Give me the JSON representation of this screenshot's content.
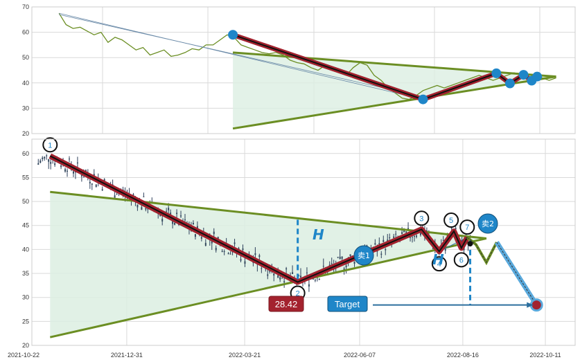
{
  "chart_data": [
    {
      "type": "line",
      "panel": "overview",
      "ylim": [
        20,
        70
      ],
      "yticks": [
        "20",
        "30",
        "40",
        "50",
        "60",
        "70"
      ],
      "grid": true,
      "series": [
        {
          "values": [
            67.5,
            63,
            61.5,
            62,
            60.5,
            59,
            60,
            56,
            58,
            57,
            55,
            53,
            54,
            51,
            52,
            53,
            50.5,
            51,
            52,
            53.5,
            53,
            55,
            55,
            57,
            59,
            58,
            55,
            54,
            53,
            52,
            51.5,
            52,
            51,
            49,
            48,
            47.5,
            46,
            45,
            47,
            46,
            44,
            43,
            46,
            48,
            47,
            43,
            41,
            38,
            36,
            34,
            33.5,
            35,
            37,
            38,
            39,
            38,
            39,
            40,
            41,
            42,
            43,
            42,
            41,
            42,
            43,
            44,
            43,
            42,
            43,
            42,
            41,
            42
          ]
        }
      ],
      "pattern_points": [
        {
          "x": 0.37,
          "y": 59
        },
        {
          "x": 0.72,
          "y": 33.5
        },
        {
          "x": 0.855,
          "y": 43.8
        },
        {
          "x": 0.88,
          "y": 39.8
        },
        {
          "x": 0.905,
          "y": 43.2
        },
        {
          "x": 0.92,
          "y": 40.9
        },
        {
          "x": 0.93,
          "y": 42.5
        }
      ],
      "trend_upper": [
        [
          0.37,
          52
        ],
        [
          0.965,
          42.5
        ]
      ],
      "trend_lower": [
        [
          0.37,
          22
        ],
        [
          0.965,
          42.5
        ]
      ]
    },
    {
      "type": "line",
      "panel": "detail",
      "ylim": [
        20,
        63
      ],
      "yticks": [
        "20",
        "25",
        "30",
        "35",
        "40",
        "45",
        "50",
        "55",
        "60"
      ],
      "xticks": [
        "2021-10-22",
        "2021-12-31",
        "2022-03-21",
        "2022-06-07",
        "2022-08-16",
        "2022-10-11"
      ],
      "grid": true,
      "pattern_points": [
        {
          "label": "1",
          "x": "2021-11-09",
          "y": 59.5
        },
        {
          "label": "2",
          "x": "2022-04-26",
          "y": 33.2
        },
        {
          "label": "3",
          "x": "2022-07-19",
          "y": 44.2
        },
        {
          "label": "4",
          "x": "2022-07-31",
          "y": 39.6
        },
        {
          "label": "5",
          "x": "2022-08-10",
          "y": 43.8
        },
        {
          "label": "6",
          "x": "2022-08-15",
          "y": 40.3
        },
        {
          "label": "7",
          "x": "2022-08-19",
          "y": 42.5
        }
      ],
      "projection": [
        {
          "x": "2022-08-19",
          "y": 42.5
        },
        {
          "x": "2022-08-25",
          "y": 41.0
        },
        {
          "x": "2022-09-01",
          "y": 37.3
        },
        {
          "x": "2022-09-08",
          "y": 41.5
        },
        {
          "x": "2022-10-05",
          "y": 28.42
        }
      ],
      "trend_upper": [
        [
          "2021-11-09",
          52
        ],
        [
          "2022-09-01",
          42.3
        ]
      ],
      "trend_lower": [
        [
          "2021-11-09",
          21.7
        ],
        [
          "2022-09-01",
          42.3
        ]
      ],
      "height_marker_x": [
        "2022-04-26",
        "2022-08-21"
      ],
      "annotations": {
        "h_label": "H",
        "target_price": "28.42",
        "target_label": "Target",
        "sell1": "卖1",
        "sell2": "卖2"
      }
    }
  ]
}
